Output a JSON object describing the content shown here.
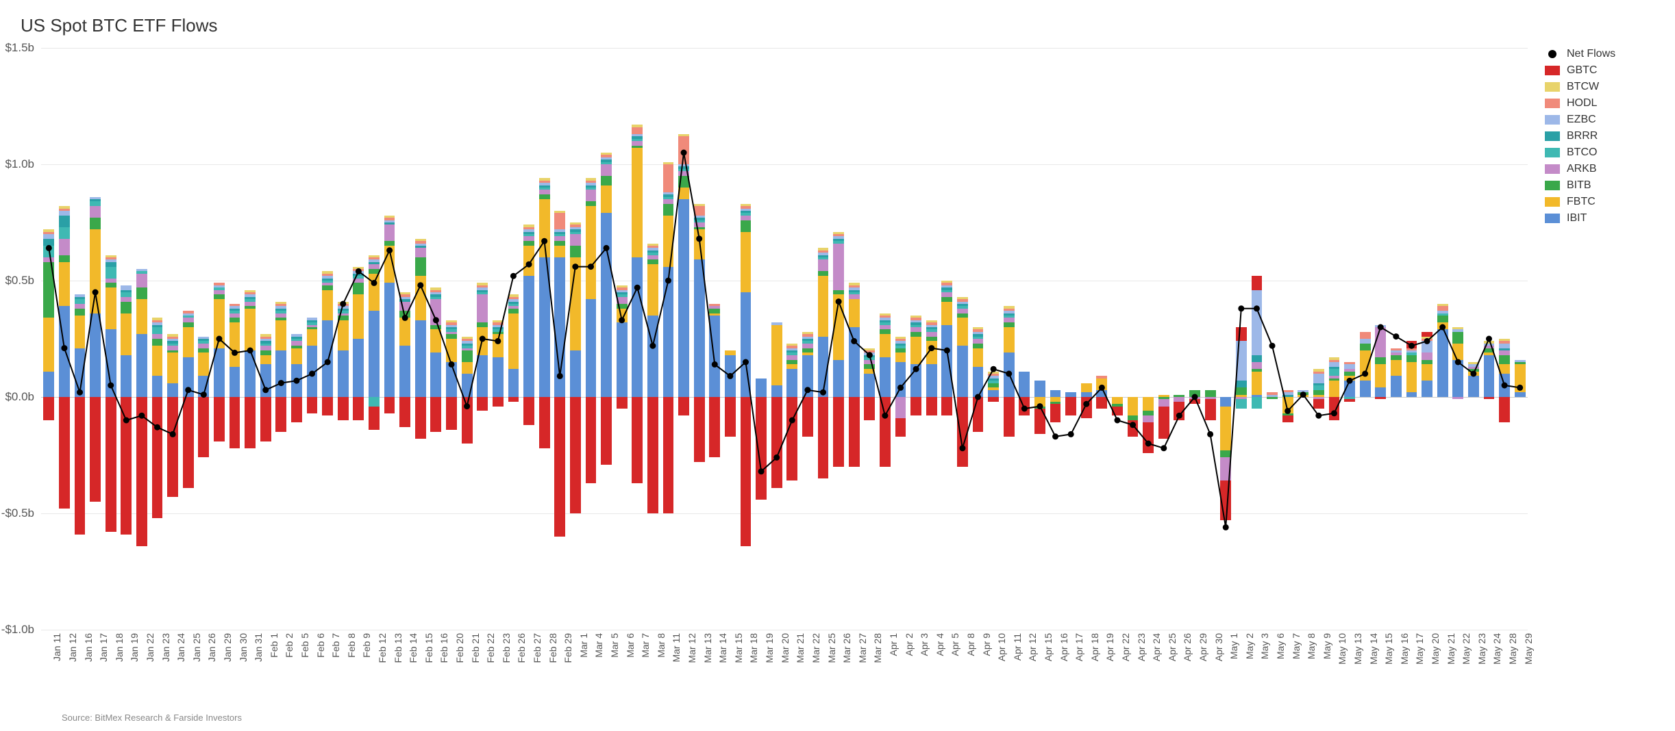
{
  "title": "US Spot BTC ETF Flows",
  "source": "Source: BitMex Research & Farside Investors",
  "chart": {
    "type": "stacked-bar-with-line",
    "ylim": [
      -1.0,
      1.5
    ],
    "ytick_step": 0.5,
    "ytick_labels": [
      "-$1.0b",
      "-$0.5b",
      "$0.0b",
      "$0.5b",
      "$1.0b",
      "$1.5b"
    ],
    "ytick_values": [
      -1.0,
      -0.5,
      0.0,
      0.5,
      1.0,
      1.5
    ],
    "grid_color": "#e8e8e8",
    "background_color": "#ffffff",
    "bar_width_ratio": 0.7,
    "line_color": "#000000",
    "line_width": 2,
    "marker_color": "#000000",
    "marker_radius": 4.5,
    "title_fontsize": 26,
    "axis_fontsize": 17,
    "xlabel_fontsize": 14,
    "legend_fontsize": 16,
    "series_order": [
      "IBIT",
      "FBTC",
      "BITB",
      "ARKB",
      "BTCO",
      "BRRR",
      "EZBC",
      "HODL",
      "BTCW",
      "GBTC"
    ],
    "series_colors": {
      "IBIT": "#5b8fd6",
      "FBTC": "#f2b92a",
      "BITB": "#3aa84a",
      "ARKB": "#c48bc8",
      "BTCO": "#3fb9b3",
      "BRRR": "#2aa0a6",
      "EZBC": "#9db8e8",
      "HODL": "#f08a7a",
      "BTCW": "#e8d36a",
      "GBTC": "#d62728",
      "NetFlows": "#000000"
    },
    "legend": [
      "Net Flows",
      "GBTC",
      "BTCW",
      "HODL",
      "EZBC",
      "BRRR",
      "BTCO",
      "ARKB",
      "BITB",
      "FBTC",
      "IBIT"
    ],
    "categories": [
      "Jan 11",
      "Jan 12",
      "Jan 16",
      "Jan 17",
      "Jan 18",
      "Jan 19",
      "Jan 22",
      "Jan 23",
      "Jan 24",
      "Jan 25",
      "Jan 26",
      "Jan 29",
      "Jan 30",
      "Jan 31",
      "Feb 1",
      "Feb 2",
      "Feb 5",
      "Feb 6",
      "Feb 7",
      "Feb 8",
      "Feb 9",
      "Feb 12",
      "Feb 13",
      "Feb 14",
      "Feb 15",
      "Feb 16",
      "Feb 20",
      "Feb 21",
      "Feb 22",
      "Feb 23",
      "Feb 26",
      "Feb 27",
      "Feb 28",
      "Feb 29",
      "Mar 1",
      "Mar 4",
      "Mar 5",
      "Mar 6",
      "Mar 7",
      "Mar 8",
      "Mar 11",
      "Mar 12",
      "Mar 13",
      "Mar 14",
      "Mar 15",
      "Mar 18",
      "Mar 19",
      "Mar 20",
      "Mar 21",
      "Mar 22",
      "Mar 25",
      "Mar 26",
      "Mar 27",
      "Mar 28",
      "Apr 1",
      "Apr 2",
      "Apr 3",
      "Apr 4",
      "Apr 5",
      "Apr 8",
      "Apr 9",
      "Apr 10",
      "Apr 11",
      "Apr 12",
      "Apr 15",
      "Apr 16",
      "Apr 17",
      "Apr 18",
      "Apr 19",
      "Apr 22",
      "Apr 23",
      "Apr 24",
      "Apr 25",
      "Apr 26",
      "Apr 29",
      "Apr 30",
      "May 1",
      "May 2",
      "May 3",
      "May 6",
      "May 7",
      "May 8",
      "May 9",
      "May 10",
      "May 13",
      "May 14",
      "May 15",
      "May 16",
      "May 17",
      "May 20",
      "May 21",
      "May 22",
      "May 23",
      "May 24",
      "May 28",
      "May 29"
    ],
    "data": {
      "IBIT": [
        0.11,
        0.39,
        0.21,
        0.36,
        0.29,
        0.18,
        0.27,
        0.09,
        0.06,
        0.17,
        0.09,
        0.21,
        0.13,
        0.2,
        0.14,
        0.2,
        0.14,
        0.22,
        0.33,
        0.2,
        0.25,
        0.37,
        0.49,
        0.22,
        0.33,
        0.19,
        0.15,
        0.1,
        0.18,
        0.17,
        0.12,
        0.52,
        0.6,
        0.6,
        0.2,
        0.42,
        0.79,
        0.32,
        0.6,
        0.35,
        0.56,
        0.85,
        0.59,
        0.35,
        0.18,
        0.45,
        0.08,
        0.05,
        0.12,
        0.18,
        0.26,
        0.16,
        0.3,
        0.1,
        0.17,
        0.15,
        0.14,
        0.14,
        0.31,
        0.22,
        0.13,
        0.03,
        0.19,
        0.11,
        0.07,
        0.03,
        0.02,
        0.02,
        0.03,
        0.0,
        0.0,
        0.0,
        0.0,
        0.0,
        0.0,
        0.0,
        -0.04,
        0.0,
        0.01,
        0.0,
        0.0,
        0.0,
        0.0,
        0.0,
        0.07,
        0.07,
        0.04,
        0.09,
        0.02,
        0.07,
        0.29,
        0.16,
        0.09,
        0.18,
        0.1,
        0.02
      ],
      "FBTC": [
        0.23,
        0.19,
        0.14,
        0.36,
        0.18,
        0.18,
        0.15,
        0.13,
        0.13,
        0.13,
        0.1,
        0.21,
        0.19,
        0.18,
        0.04,
        0.13,
        0.07,
        0.07,
        0.13,
        0.13,
        0.19,
        0.16,
        0.16,
        0.12,
        0.19,
        0.1,
        0.1,
        0.05,
        0.12,
        0.1,
        0.24,
        0.13,
        0.25,
        0.05,
        0.4,
        0.4,
        0.12,
        0.06,
        0.47,
        0.22,
        0.22,
        0.05,
        0.13,
        0.01,
        0.02,
        0.26,
        0.0,
        0.26,
        0.02,
        0.01,
        0.26,
        0.28,
        0.12,
        0.02,
        0.1,
        0.04,
        0.12,
        0.1,
        0.1,
        0.12,
        0.08,
        0.01,
        0.11,
        0.0,
        -0.04,
        -0.02,
        0.0,
        0.04,
        0.05,
        -0.03,
        -0.08,
        -0.06,
        0.01,
        0.0,
        0.0,
        0.0,
        -0.19,
        0.01,
        0.1,
        0.0,
        -0.07,
        0.01,
        0.01,
        0.07,
        0.02,
        0.13,
        0.1,
        0.07,
        0.13,
        0.07,
        0.03,
        0.07,
        0.02,
        0.01,
        0.04,
        0.12
      ],
      "BITB": [
        0.24,
        0.03,
        0.03,
        0.05,
        0.02,
        0.05,
        0.05,
        0.03,
        0.01,
        0.02,
        0.02,
        0.02,
        0.02,
        0.01,
        0.02,
        0.01,
        0.01,
        0.01,
        0.02,
        0.02,
        0.05,
        0.02,
        0.02,
        0.03,
        0.08,
        0.02,
        0.02,
        0.05,
        0.02,
        0.01,
        0.02,
        0.02,
        0.02,
        0.02,
        0.05,
        0.02,
        0.04,
        0.02,
        0.01,
        0.02,
        0.05,
        0.05,
        0.01,
        0.02,
        0.0,
        0.05,
        0.0,
        0.0,
        0.02,
        0.02,
        0.02,
        0.02,
        0.0,
        0.02,
        0.02,
        0.02,
        0.02,
        0.02,
        0.02,
        0.02,
        0.02,
        0.02,
        0.02,
        0.0,
        -0.01,
        -0.01,
        0.0,
        0.0,
        0.0,
        -0.01,
        -0.02,
        -0.02,
        -0.01,
        0.01,
        0.03,
        0.03,
        -0.03,
        0.03,
        0.01,
        -0.01,
        -0.01,
        0.01,
        0.02,
        0.01,
        0.02,
        0.03,
        0.03,
        0.02,
        0.03,
        0.02,
        0.03,
        0.05,
        0.01,
        0.02,
        0.04,
        0.01
      ],
      "ARKB": [
        0.02,
        0.07,
        0.02,
        0.05,
        0.02,
        0.02,
        0.06,
        0.02,
        0.02,
        0.02,
        0.02,
        0.02,
        0.02,
        0.02,
        0.02,
        0.02,
        0.02,
        0.01,
        0.01,
        0.01,
        0.02,
        0.02,
        0.07,
        0.04,
        0.04,
        0.11,
        0.01,
        0.01,
        0.12,
        0.0,
        0.01,
        0.02,
        0.02,
        0.02,
        0.05,
        0.05,
        0.05,
        0.03,
        0.02,
        0.02,
        0.02,
        0.02,
        0.02,
        0.01,
        0.0,
        0.02,
        0.0,
        0.0,
        0.02,
        0.02,
        0.05,
        0.2,
        0.02,
        0.02,
        0.02,
        -0.09,
        0.02,
        0.02,
        0.02,
        0.02,
        0.02,
        0.0,
        0.02,
        0.0,
        0.0,
        0.0,
        0.0,
        0.0,
        0.0,
        0.0,
        0.0,
        -0.03,
        -0.03,
        -0.02,
        -0.01,
        -0.01,
        -0.1,
        -0.01,
        0.03,
        0.0,
        0.0,
        0.0,
        -0.01,
        0.01,
        0.01,
        0.0,
        0.13,
        0.01,
        0.0,
        0.03,
        0.0,
        -0.01,
        0.01,
        0.01,
        0.02,
        0.0
      ],
      "BTCO": [
        0.05,
        0.05,
        0.02,
        0.02,
        0.05,
        0.02,
        0.01,
        0.03,
        0.01,
        0.01,
        0.01,
        0.01,
        0.01,
        0.01,
        0.01,
        0.01,
        0.01,
        0.01,
        0.01,
        0.01,
        0.01,
        -0.04,
        0.0,
        0.0,
        0.0,
        0.01,
        0.01,
        0.01,
        0.01,
        0.01,
        0.01,
        0.01,
        0.01,
        0.01,
        0.01,
        0.01,
        0.01,
        0.01,
        0.01,
        0.01,
        0.01,
        0.01,
        0.01,
        0.0,
        0.0,
        0.01,
        0.0,
        0.0,
        0.01,
        0.01,
        0.01,
        0.01,
        0.01,
        0.01,
        0.01,
        0.01,
        0.01,
        0.01,
        0.01,
        0.01,
        0.01,
        0.01,
        0.01,
        0.0,
        0.0,
        0.0,
        0.0,
        0.0,
        0.0,
        0.0,
        0.0,
        0.0,
        0.0,
        0.0,
        0.0,
        0.0,
        0.0,
        -0.04,
        -0.05,
        0.0,
        0.0,
        0.0,
        0.02,
        0.03,
        -0.01,
        0.0,
        0.0,
        0.0,
        0.01,
        0.0,
        0.01,
        0.0,
        0.0,
        0.0,
        0.0,
        0.0
      ],
      "BRRR": [
        0.03,
        0.05,
        0.01,
        0.01,
        0.02,
        0.01,
        0.0,
        0.01,
        0.01,
        0.0,
        0.01,
        0.0,
        0.01,
        0.01,
        0.01,
        0.01,
        0.01,
        0.01,
        0.01,
        0.01,
        0.01,
        0.01,
        0.01,
        0.01,
        0.01,
        0.01,
        0.01,
        0.01,
        0.01,
        0.01,
        0.01,
        0.01,
        0.01,
        0.01,
        0.01,
        0.01,
        0.01,
        0.01,
        0.01,
        0.01,
        0.01,
        0.01,
        0.01,
        0.0,
        0.0,
        0.01,
        0.0,
        0.0,
        0.01,
        0.01,
        0.01,
        0.01,
        0.01,
        0.01,
        0.01,
        0.01,
        0.01,
        0.01,
        0.01,
        0.01,
        0.01,
        0.01,
        0.01,
        0.0,
        0.0,
        0.0,
        0.0,
        0.0,
        0.0,
        0.0,
        0.0,
        0.0,
        0.0,
        0.0,
        0.0,
        0.0,
        0.0,
        0.03,
        0.03,
        0.0,
        0.01,
        0.0,
        0.01,
        0.01,
        0.0,
        0.0,
        0.0,
        0.0,
        0.0,
        0.0,
        0.0,
        0.0,
        0.0,
        0.0,
        0.01,
        0.0
      ],
      "EZBC": [
        0.02,
        0.02,
        0.01,
        0.01,
        0.01,
        0.02,
        0.01,
        0.01,
        0.01,
        0.01,
        0.01,
        0.01,
        0.01,
        0.01,
        0.01,
        0.01,
        0.01,
        0.01,
        0.01,
        0.01,
        0.01,
        0.01,
        0.01,
        0.01,
        0.01,
        0.01,
        0.01,
        0.01,
        0.01,
        0.01,
        0.01,
        0.01,
        0.01,
        0.01,
        0.01,
        0.01,
        0.01,
        0.01,
        0.01,
        0.01,
        0.01,
        0.01,
        0.01,
        0.0,
        0.0,
        0.01,
        0.0,
        0.01,
        0.01,
        0.01,
        0.01,
        0.01,
        0.01,
        0.01,
        0.01,
        0.01,
        0.01,
        0.01,
        0.01,
        0.01,
        0.01,
        0.01,
        0.01,
        0.0,
        0.0,
        0.0,
        0.0,
        0.0,
        0.0,
        0.0,
        0.0,
        0.0,
        0.0,
        0.0,
        0.0,
        0.0,
        0.0,
        0.17,
        0.28,
        0.01,
        0.01,
        0.01,
        0.04,
        0.02,
        0.02,
        0.02,
        0.01,
        0.01,
        0.01,
        0.05,
        0.01,
        0.01,
        0.01,
        0.01,
        0.02,
        0.01
      ],
      "HODL": [
        0.01,
        0.01,
        0.0,
        0.0,
        0.01,
        0.0,
        0.0,
        0.01,
        0.01,
        0.01,
        0.0,
        0.01,
        0.01,
        0.01,
        0.01,
        0.01,
        0.0,
        0.0,
        0.01,
        0.01,
        0.01,
        0.01,
        0.01,
        0.01,
        0.01,
        0.01,
        0.01,
        0.01,
        0.01,
        0.01,
        0.01,
        0.01,
        0.01,
        0.07,
        0.01,
        0.01,
        0.01,
        0.01,
        0.03,
        0.01,
        0.12,
        0.12,
        0.04,
        0.01,
        0.0,
        0.01,
        0.0,
        0.0,
        0.01,
        0.01,
        0.01,
        0.01,
        0.01,
        0.01,
        0.01,
        0.01,
        0.01,
        0.01,
        0.01,
        0.01,
        0.01,
        0.01,
        0.01,
        0.0,
        0.0,
        0.0,
        0.0,
        0.0,
        0.01,
        0.0,
        0.0,
        0.0,
        0.0,
        0.0,
        0.0,
        0.0,
        0.0,
        0.0,
        0.0,
        0.01,
        0.01,
        0.0,
        0.01,
        0.01,
        0.01,
        0.03,
        0.0,
        0.01,
        0.01,
        0.01,
        0.02,
        0.0,
        0.0,
        0.0,
        0.01,
        0.0
      ],
      "BTCW": [
        0.01,
        0.01,
        0.0,
        0.0,
        0.01,
        0.0,
        0.0,
        0.01,
        0.01,
        0.0,
        0.0,
        0.0,
        0.0,
        0.01,
        0.01,
        0.01,
        0.0,
        0.0,
        0.01,
        0.01,
        0.01,
        0.01,
        0.01,
        0.01,
        0.01,
        0.01,
        0.01,
        0.01,
        0.01,
        0.01,
        0.01,
        0.01,
        0.01,
        0.01,
        0.01,
        0.01,
        0.01,
        0.01,
        0.01,
        0.01,
        0.01,
        0.01,
        0.01,
        0.0,
        0.0,
        0.01,
        0.0,
        0.0,
        0.01,
        0.01,
        0.01,
        0.01,
        0.01,
        0.01,
        0.01,
        0.01,
        0.01,
        0.01,
        0.01,
        0.01,
        0.01,
        0.01,
        0.01,
        0.0,
        0.0,
        0.0,
        0.0,
        0.0,
        0.0,
        0.0,
        0.0,
        0.0,
        0.0,
        0.0,
        0.0,
        0.0,
        0.0,
        0.0,
        0.0,
        0.0,
        0.0,
        0.0,
        0.01,
        0.01,
        0.0,
        0.0,
        0.0,
        0.0,
        0.0,
        0.01,
        0.01,
        0.01,
        0.01,
        0.01,
        0.01,
        0.0
      ],
      "GBTC": [
        -0.1,
        -0.48,
        -0.59,
        -0.45,
        -0.58,
        -0.59,
        -0.64,
        -0.52,
        -0.43,
        -0.39,
        -0.26,
        -0.19,
        -0.22,
        -0.22,
        -0.19,
        -0.15,
        -0.11,
        -0.07,
        -0.08,
        -0.1,
        -0.1,
        -0.1,
        -0.07,
        -0.13,
        -0.18,
        -0.15,
        -0.14,
        -0.2,
        -0.06,
        -0.04,
        -0.02,
        -0.12,
        -0.22,
        -0.6,
        -0.5,
        -0.37,
        -0.29,
        -0.05,
        -0.37,
        -0.5,
        -0.5,
        -0.08,
        -0.28,
        -0.26,
        -0.17,
        -0.64,
        -0.44,
        -0.39,
        -0.36,
        -0.17,
        -0.35,
        -0.3,
        -0.3,
        -0.1,
        -0.3,
        -0.08,
        -0.08,
        -0.08,
        -0.08,
        -0.3,
        -0.15,
        -0.02,
        -0.17,
        -0.08,
        -0.11,
        -0.08,
        -0.08,
        -0.09,
        -0.05,
        -0.04,
        -0.07,
        -0.13,
        -0.14,
        -0.08,
        -0.02,
        -0.09,
        -0.17,
        0.06,
        0.06,
        0.0,
        -0.03,
        0.0,
        -0.04,
        -0.1,
        -0.01,
        0.0,
        -0.01,
        0.0,
        0.03,
        0.02,
        0.0,
        0.0,
        0.0,
        -0.01,
        -0.11,
        0.0
      ],
      "NetFlows": [
        0.64,
        0.21,
        0.02,
        0.45,
        0.05,
        -0.1,
        -0.08,
        -0.13,
        -0.16,
        0.03,
        0.01,
        0.25,
        0.19,
        0.2,
        0.03,
        0.06,
        0.07,
        0.1,
        0.15,
        0.4,
        0.54,
        0.49,
        0.63,
        0.34,
        0.48,
        0.33,
        0.14,
        -0.04,
        0.25,
        0.24,
        0.52,
        0.57,
        0.67,
        0.09,
        0.56,
        0.56,
        0.64,
        0.33,
        0.47,
        0.22,
        0.5,
        1.05,
        0.68,
        0.14,
        0.09,
        0.15,
        -0.32,
        -0.26,
        -0.1,
        0.03,
        0.02,
        0.41,
        0.24,
        0.18,
        -0.08,
        0.04,
        0.12,
        0.21,
        0.2,
        -0.22,
        0.0,
        0.12,
        0.1,
        -0.05,
        -0.04,
        -0.17,
        -0.16,
        -0.03,
        0.04,
        -0.1,
        -0.12,
        -0.2,
        -0.22,
        -0.08,
        0.0,
        -0.16,
        -0.56,
        0.38,
        0.38,
        0.22,
        -0.06,
        0.01,
        -0.08,
        -0.07,
        0.07,
        0.1,
        0.3,
        0.26,
        0.22,
        0.24,
        0.3,
        0.15,
        0.1,
        0.25,
        0.05,
        0.04
      ]
    }
  }
}
